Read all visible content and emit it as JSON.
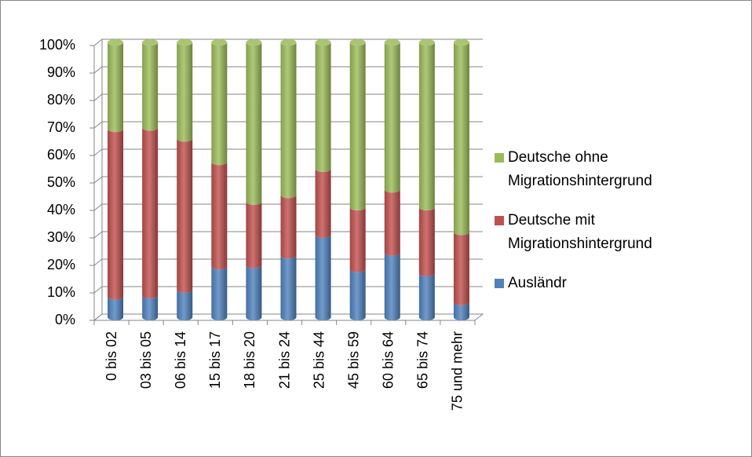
{
  "chart_data": {
    "type": "stacked-bar-3d",
    "categories": [
      "0 bis 02",
      "03 bis 05",
      "06 bis 14",
      "15 bis 17",
      "18 bis 20",
      "21 bis 24",
      "25 bis 44",
      "45 bis 59",
      "60 bis 64",
      "65 bis 74",
      "75 und mehr"
    ],
    "series": [
      {
        "name": "Ausländr",
        "color": "#4f81bd",
        "values": [
          7.5,
          8,
          10,
          18.5,
          19,
          22.5,
          30,
          17.5,
          23.5,
          16,
          5.5
        ]
      },
      {
        "name": "Deutsche mit Migrationshintergrund",
        "color": "#c0504d",
        "values": [
          61,
          61,
          55,
          38,
          23,
          22,
          24,
          22.5,
          23,
          24,
          25.5
        ]
      },
      {
        "name": "Deutsche ohne Migrationshintergrund",
        "color": "#9bbb59",
        "values": [
          31.5,
          31,
          35,
          43.5,
          58,
          55.5,
          46,
          60,
          53.5,
          60,
          69
        ]
      }
    ],
    "ylim": [
      0,
      100
    ],
    "yticks": [
      {
        "value": 0,
        "label": "0%"
      },
      {
        "value": 10,
        "label": "10%"
      },
      {
        "value": 20,
        "label": "20%"
      },
      {
        "value": 30,
        "label": "30%"
      },
      {
        "value": 40,
        "label": "40%"
      },
      {
        "value": 50,
        "label": "50%"
      },
      {
        "value": 60,
        "label": "60%"
      },
      {
        "value": 70,
        "label": "70%"
      },
      {
        "value": 80,
        "label": "80%"
      },
      {
        "value": 90,
        "label": "90%"
      },
      {
        "value": 100,
        "label": "100%"
      }
    ],
    "grid": true,
    "legend": "right"
  }
}
